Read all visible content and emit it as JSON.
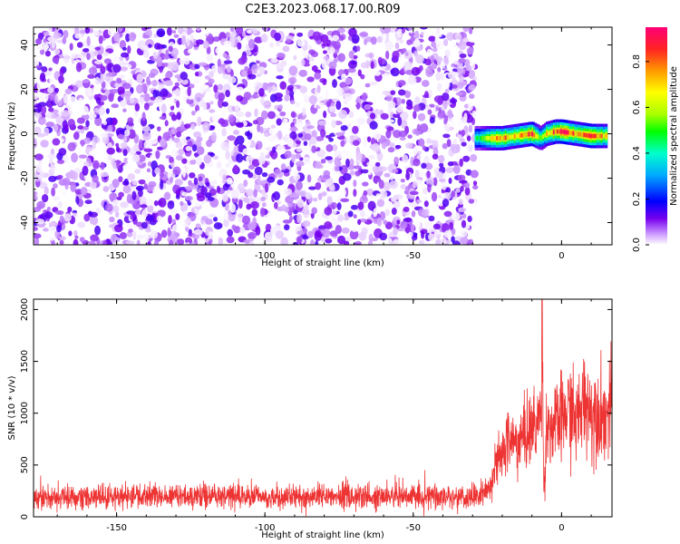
{
  "title": "C2E3.2023.068.17.00.R09",
  "chart_data": [
    {
      "type": "heatmap",
      "xlabel": "Height of straight line (km)",
      "ylabel": "Frequency (Hz)",
      "xlim": [
        -178,
        17
      ],
      "ylim": [
        -50,
        48
      ],
      "xticks": [
        -150,
        -100,
        -50,
        0
      ],
      "yticks": [
        40,
        20,
        0,
        -20,
        -40
      ],
      "colorbar": {
        "label": "Normalized spectral amplitude",
        "range": [
          0,
          0.95
        ],
        "ticks": [
          "0.0",
          "0.2",
          "0.4",
          "0.6",
          "0.8"
        ],
        "ticks_num": [
          0.0,
          0.2,
          0.4,
          0.6,
          0.8
        ]
      },
      "noise_region": {
        "x": [
          -178,
          -29
        ],
        "y": [
          -50,
          48
        ],
        "amplitude_range": [
          0.0,
          0.15
        ]
      },
      "signal_band": {
        "x": [
          -29,
          -20,
          -15,
          -10,
          -7,
          -5,
          -2,
          0,
          5,
          10,
          15
        ],
        "frequency": [
          -2,
          -2,
          -1,
          0,
          -2,
          0,
          1,
          1,
          0,
          -1,
          -1
        ],
        "peak_amplitude": [
          0.45,
          0.8,
          0.7,
          0.9,
          0.55,
          0.75,
          0.85,
          0.9,
          0.8,
          0.85,
          0.7
        ]
      }
    },
    {
      "type": "line",
      "xlabel": "Height of straight line (km)",
      "ylabel": "SNR (10 * v/v)",
      "xlim": [
        -178,
        17
      ],
      "ylim": [
        0,
        2100
      ],
      "xticks": [
        -150,
        -100,
        -50,
        0
      ],
      "yticks": [
        0,
        500,
        1000,
        1500,
        2000
      ],
      "series": [
        {
          "color": "#ee3333",
          "x": [
            -178,
            -150,
            -120,
            -100,
            -80,
            -60,
            -40,
            -28,
            -25,
            -22,
            -20,
            -18,
            -15,
            -12,
            -10,
            -8,
            -7,
            -6.5,
            -6,
            -5,
            -3,
            0,
            3,
            5,
            8,
            10,
            12,
            15,
            17
          ],
          "y": [
            180,
            190,
            200,
            195,
            190,
            200,
            190,
            200,
            250,
            500,
            600,
            750,
            700,
            800,
            850,
            900,
            1000,
            2080,
            200,
            900,
            850,
            950,
            1050,
            900,
            1150,
            1000,
            1050,
            950,
            1100
          ]
        }
      ]
    }
  ]
}
